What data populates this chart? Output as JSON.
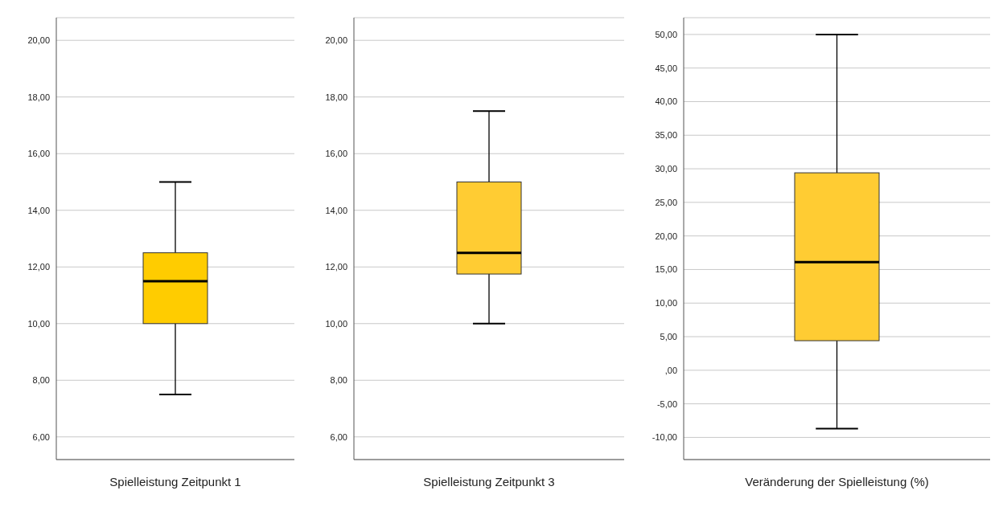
{
  "chart_data": [
    {
      "type": "box",
      "categories": [
        "Spielleistung Zeitpunkt 1"
      ],
      "color": "#ffcc00",
      "grid": "y",
      "ylim": [
        5.2,
        20.8
      ],
      "yticks": [
        {
          "value": 6,
          "label": "6,00"
        },
        {
          "value": 8,
          "label": "8,00"
        },
        {
          "value": 10,
          "label": "10,00"
        },
        {
          "value": 12,
          "label": "12,00"
        },
        {
          "value": 14,
          "label": "14,00"
        },
        {
          "value": 16,
          "label": "16,00"
        },
        {
          "value": 18,
          "label": "18,00"
        },
        {
          "value": 20,
          "label": "20,00"
        }
      ],
      "boxes": [
        {
          "low": 7.5,
          "q1": 10,
          "median": 11.5,
          "q3": 12.5,
          "high": 15
        }
      ]
    },
    {
      "type": "box",
      "categories": [
        "Spielleistung Zeitpunkt 3"
      ],
      "color": "#ffcc33",
      "grid": "y",
      "ylim": [
        5.2,
        20.8
      ],
      "yticks": [
        {
          "value": 6,
          "label": "6,00"
        },
        {
          "value": 8,
          "label": "8,00"
        },
        {
          "value": 10,
          "label": "10,00"
        },
        {
          "value": 12,
          "label": "12,00"
        },
        {
          "value": 14,
          "label": "14,00"
        },
        {
          "value": 16,
          "label": "16,00"
        },
        {
          "value": 18,
          "label": "18,00"
        },
        {
          "value": 20,
          "label": "20,00"
        }
      ],
      "boxes": [
        {
          "low": 10,
          "q1": 11.75,
          "median": 12.5,
          "q3": 15,
          "high": 17.5
        }
      ]
    },
    {
      "type": "box",
      "categories": [
        "Veränderung der Spielleistung (%)"
      ],
      "color": "#ffcc33",
      "grid": "y",
      "ylim": [
        -13.3,
        52.5
      ],
      "yticks": [
        {
          "value": -10,
          "label": "-10,00"
        },
        {
          "value": -5,
          "label": "-5,00"
        },
        {
          "value": 0,
          "label": ",00"
        },
        {
          "value": 5,
          "label": "5,00"
        },
        {
          "value": 10,
          "label": "10,00"
        },
        {
          "value": 15,
          "label": "15,00"
        },
        {
          "value": 20,
          "label": "20,00"
        },
        {
          "value": 25,
          "label": "25,00"
        },
        {
          "value": 30,
          "label": "30,00"
        },
        {
          "value": 35,
          "label": "35,00"
        },
        {
          "value": 40,
          "label": "40,00"
        },
        {
          "value": 45,
          "label": "45,00"
        },
        {
          "value": 50,
          "label": "50,00"
        }
      ],
      "boxes": [
        {
          "low": -8.7,
          "q1": 4.4,
          "median": 16.1,
          "q3": 29.4,
          "high": 50
        }
      ]
    }
  ]
}
